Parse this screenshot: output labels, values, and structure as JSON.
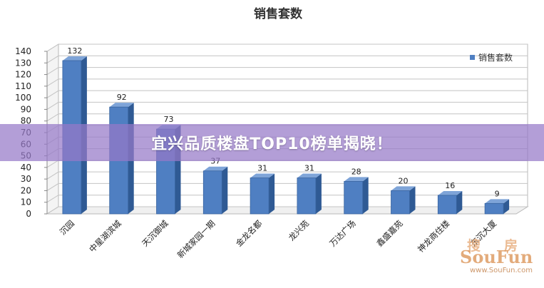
{
  "chart_data": {
    "type": "bar",
    "title": "销售套数",
    "categories": [
      "沉园",
      "中星湖滨城",
      "天沉御城",
      "新城家园一期",
      "金龙名都",
      "龙兴苑",
      "万达广场",
      "鑫盛嘉苑",
      "神龙商住楼",
      "东沉大厦"
    ],
    "series": [
      {
        "name": "销售套数",
        "values": [
          132,
          92,
          73,
          37,
          31,
          31,
          28,
          20,
          16,
          9
        ]
      }
    ],
    "ylim": [
      0,
      140
    ],
    "yticks": [
      0,
      10,
      20,
      30,
      40,
      50,
      60,
      70,
      80,
      90,
      100,
      110,
      120,
      130,
      140
    ],
    "grid": true,
    "legend": "top-right",
    "bar_color": "#4f7fc2"
  },
  "banner": {
    "text": "宜兴品质楼盘TOP10榜单揭晓！"
  },
  "watermark": {
    "top_left": "搜",
    "top_right": "房",
    "brand": "SouFun",
    "url": "www.SouFun.com"
  }
}
